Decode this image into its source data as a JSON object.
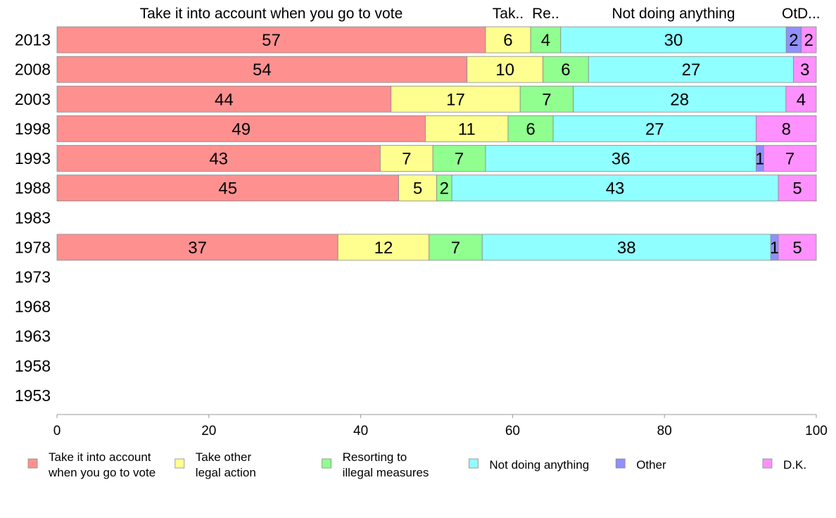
{
  "chart_data": {
    "type": "bar",
    "orientation": "horizontal",
    "stacked": true,
    "categories": [
      "2013",
      "2008",
      "2003",
      "1998",
      "1993",
      "1988",
      "1983",
      "1978",
      "1973",
      "1968",
      "1963",
      "1958",
      "1953"
    ],
    "series": [
      {
        "name": "Take it into account when you go to vote",
        "legend_lines": [
          "Take it into account",
          "when you go to vote"
        ],
        "header": "Take it into account when you go to vote",
        "color": "#ff9090",
        "values": [
          57,
          54,
          44,
          49,
          43,
          45,
          null,
          37,
          null,
          null,
          null,
          null,
          null
        ]
      },
      {
        "name": "Take other legal action",
        "legend_lines": [
          "Take other",
          "legal action"
        ],
        "header": "Tak..",
        "color": "#ffff90",
        "values": [
          6,
          10,
          17,
          11,
          7,
          5,
          null,
          12,
          null,
          null,
          null,
          null,
          null
        ]
      },
      {
        "name": "Resorting to illegal measures",
        "legend_lines": [
          "Resorting to",
          "illegal measures"
        ],
        "header": "Re..",
        "color": "#90ff90",
        "values": [
          4,
          6,
          7,
          6,
          7,
          2,
          null,
          7,
          null,
          null,
          null,
          null,
          null
        ]
      },
      {
        "name": "Not doing anything",
        "legend_lines": [
          "Not doing anything"
        ],
        "header": "Not doing anything",
        "color": "#90ffff",
        "values": [
          30,
          27,
          28,
          27,
          36,
          43,
          null,
          38,
          null,
          null,
          null,
          null,
          null
        ]
      },
      {
        "name": "Other",
        "legend_lines": [
          "Other"
        ],
        "header": "Ot..",
        "color": "#9090ff",
        "values": [
          2,
          0,
          0,
          0,
          1,
          0,
          null,
          1,
          null,
          null,
          null,
          null,
          null
        ]
      },
      {
        "name": "D.K.",
        "legend_lines": [
          "D.K."
        ],
        "header": "D...",
        "color": "#ff90ff",
        "values": [
          2,
          3,
          4,
          8,
          7,
          5,
          null,
          5,
          null,
          null,
          null,
          null,
          null
        ]
      }
    ],
    "xlim": [
      0,
      100
    ],
    "xticks": [
      0,
      20,
      40,
      60,
      80,
      100
    ],
    "title": "",
    "xlabel": "",
    "ylabel": "",
    "grid": false,
    "legend_position": "bottom"
  }
}
